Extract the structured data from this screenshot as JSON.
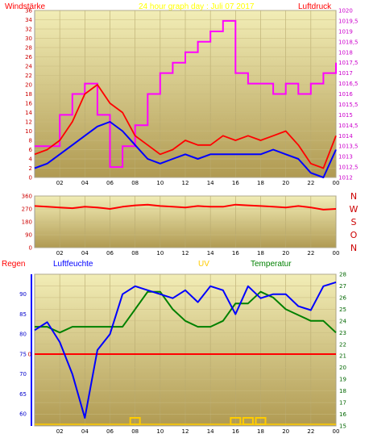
{
  "header": {
    "left_label": "Windstärke",
    "title": "24 hour graph day : Juli 07 2017",
    "right_label": "Luftdruck"
  },
  "bottom_header": {
    "regen": "Regen",
    "luftfeuchte": "Luftfeuchte",
    "uv": "UV",
    "temperatur": "Temperatur"
  },
  "colors": {
    "wind": "#ff0000",
    "gust": "#0000ff",
    "pressure": "#ff00ff",
    "direction": "#ff0000",
    "humidity": "#0000ff",
    "temperature": "#008000",
    "rain": "#ff0000",
    "uv": "#ffcc00"
  },
  "x_ticks": [
    "02",
    "04",
    "06",
    "08",
    "10",
    "12",
    "14",
    "16",
    "18",
    "20",
    "22",
    "00"
  ],
  "chart_data": [
    {
      "type": "line",
      "name_ref": "top",
      "y_left": {
        "label": "Windstärke",
        "ticks": [
          0,
          2,
          4,
          6,
          8,
          10,
          12,
          14,
          16,
          18,
          20,
          22,
          24,
          26,
          28,
          30,
          32,
          34,
          36
        ],
        "lim": [
          0,
          36
        ]
      },
      "y_right": {
        "label": "Luftdruck",
        "ticks": [
          "1012",
          "1012,5",
          "1013",
          "1013,5",
          "1014",
          "1014,5",
          "1015",
          "1015,5",
          "1016",
          "1016,5",
          "1017",
          "1017,5",
          "1018",
          "1018,5",
          "1019",
          "1019,5",
          "1020"
        ],
        "lim": [
          1012,
          1020
        ]
      },
      "x_hours": [
        0,
        1,
        2,
        3,
        4,
        5,
        6,
        7,
        8,
        9,
        10,
        11,
        12,
        13,
        14,
        15,
        16,
        17,
        18,
        19,
        20,
        21,
        22,
        23,
        24
      ],
      "series": [
        {
          "key": "wind",
          "values": [
            5,
            6,
            8,
            12,
            18,
            20,
            16,
            14,
            9,
            7,
            5,
            6,
            8,
            7,
            7,
            9,
            8,
            9,
            8,
            9,
            10,
            7,
            3,
            2,
            9
          ]
        },
        {
          "key": "gust",
          "values": [
            2,
            3,
            5,
            7,
            9,
            11,
            12,
            10,
            7,
            4,
            3,
            4,
            5,
            4,
            5,
            5,
            5,
            5,
            5,
            6,
            5,
            4,
            1,
            0,
            6
          ]
        },
        {
          "key": "pressure",
          "values": [
            1013.5,
            1013.5,
            1015,
            1016,
            1016.5,
            1015,
            1012.5,
            1013.5,
            1014.5,
            1016,
            1017,
            1017.5,
            1018,
            1018.5,
            1019,
            1019.5,
            1017,
            1016.5,
            1016.5,
            1016,
            1016.5,
            1016,
            1016.5,
            1017,
            1017.5
          ]
        }
      ]
    },
    {
      "type": "line",
      "name_ref": "direction",
      "y_left": {
        "ticks": [
          0,
          90,
          180,
          270,
          360
        ],
        "lim": [
          0,
          360
        ]
      },
      "direction_labels": [
        "N",
        "W",
        "S",
        "O",
        "N"
      ],
      "x_hours": [
        0,
        1,
        2,
        3,
        4,
        5,
        6,
        7,
        8,
        9,
        10,
        11,
        12,
        13,
        14,
        15,
        16,
        17,
        18,
        19,
        20,
        21,
        22,
        23,
        24
      ],
      "series": [
        {
          "key": "direction",
          "values": [
            290,
            285,
            280,
            275,
            285,
            280,
            270,
            285,
            295,
            300,
            290,
            285,
            280,
            290,
            285,
            285,
            300,
            295,
            290,
            285,
            280,
            290,
            280,
            265,
            270
          ]
        }
      ]
    },
    {
      "type": "line",
      "name_ref": "bottom",
      "y_humidity": {
        "ticks": [
          60,
          65,
          70,
          75,
          80,
          85,
          90
        ],
        "lim": [
          57,
          95
        ]
      },
      "y_rain": {
        "ticks": [
          0
        ],
        "lim": [
          0,
          1
        ]
      },
      "y_temperature": {
        "ticks": [
          15,
          16,
          17,
          18,
          19,
          20,
          21,
          22,
          23,
          24,
          25,
          26,
          27,
          28
        ],
        "lim": [
          15,
          28
        ]
      },
      "x_hours": [
        0,
        1,
        2,
        3,
        4,
        5,
        6,
        7,
        8,
        9,
        10,
        11,
        12,
        13,
        14,
        15,
        16,
        17,
        18,
        19,
        20,
        21,
        22,
        23,
        24
      ],
      "series": [
        {
          "key": "humidity",
          "values": [
            81,
            83,
            78,
            70,
            59,
            76,
            80,
            90,
            92,
            91,
            90,
            89,
            91,
            88,
            92,
            91,
            85,
            92,
            89,
            90,
            90,
            87,
            86,
            92,
            93
          ]
        },
        {
          "key": "temperature",
          "values": [
            23.5,
            23.5,
            23.0,
            23.5,
            23.5,
            23.5,
            23.5,
            23.5,
            25.0,
            26.5,
            26.5,
            25.0,
            24.0,
            23.5,
            23.5,
            24.0,
            25.5,
            25.5,
            26.5,
            26.0,
            25.0,
            24.5,
            24.0,
            24.0,
            23.0
          ]
        },
        {
          "key": "rain",
          "values": [
            0,
            0,
            0,
            0,
            0,
            0,
            0,
            0,
            0,
            0,
            0,
            0,
            0,
            0,
            0,
            0,
            0,
            0,
            0,
            0,
            0,
            0,
            0,
            0,
            0
          ]
        },
        {
          "key": "uv",
          "values": [
            0,
            0,
            0,
            0,
            0,
            0,
            0,
            0,
            1,
            0,
            0,
            0,
            0,
            0,
            0,
            0,
            1,
            1,
            1,
            0,
            0,
            0,
            0,
            0,
            0
          ]
        }
      ]
    }
  ]
}
